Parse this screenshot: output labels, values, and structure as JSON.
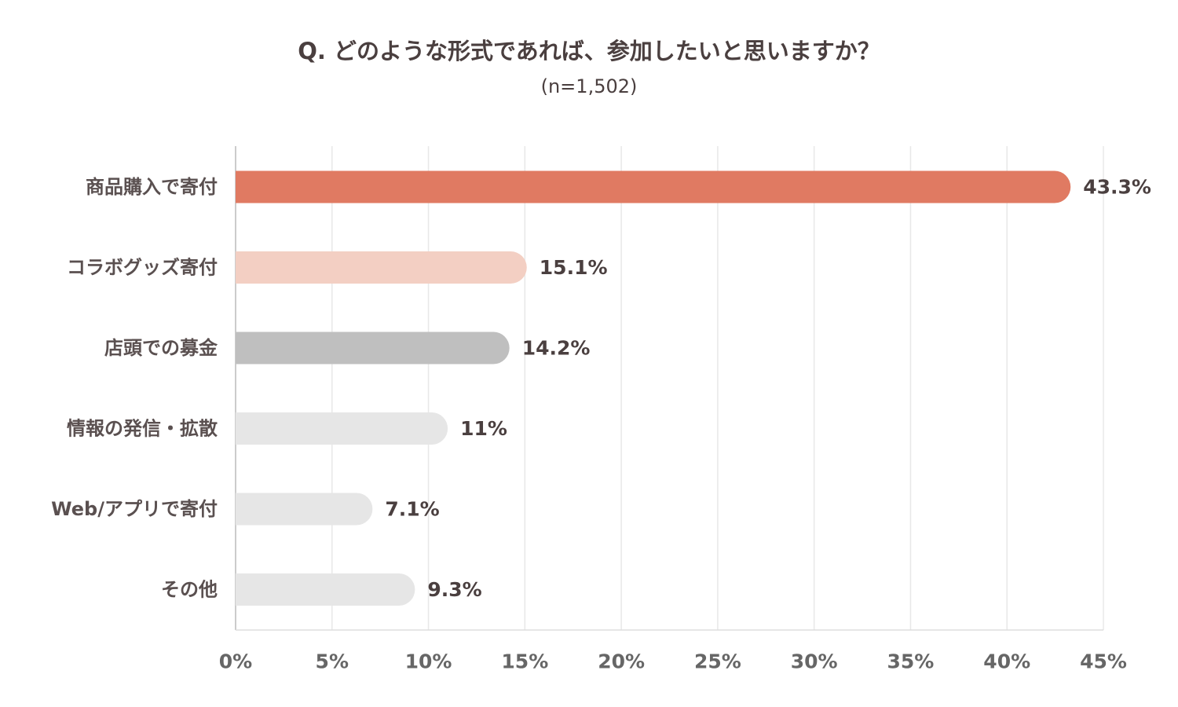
{
  "chart_data": {
    "type": "bar",
    "orientation": "horizontal",
    "title": "Q. どのような形式であれば、参加したいと思いますか？",
    "subtitle": "(n=1,502)",
    "categories": [
      "商品購入で寄付",
      "コラボグッズ寄付",
      "店頭での募金",
      "情報の発信・拡散",
      "Web/アプリで寄付",
      "その他"
    ],
    "values": [
      43.3,
      15.1,
      14.2,
      11,
      7.1,
      9.3
    ],
    "value_labels": [
      "43.3%",
      "15.1%",
      "14.2%",
      "11%",
      "7.1%",
      "9.3%"
    ],
    "bar_colors": [
      "#e07a62",
      "#f3cfc3",
      "#bfbfbf",
      "#e6e6e6",
      "#e6e6e6",
      "#e6e6e6"
    ],
    "xlim": [
      0,
      45
    ],
    "x_ticks": [
      0,
      5,
      10,
      15,
      20,
      25,
      30,
      35,
      40,
      45
    ],
    "x_tick_labels": [
      "0%",
      "5%",
      "10%",
      "15%",
      "20%",
      "25%",
      "30%",
      "35%",
      "40%",
      "45%"
    ],
    "grid": true,
    "legend": "none"
  }
}
